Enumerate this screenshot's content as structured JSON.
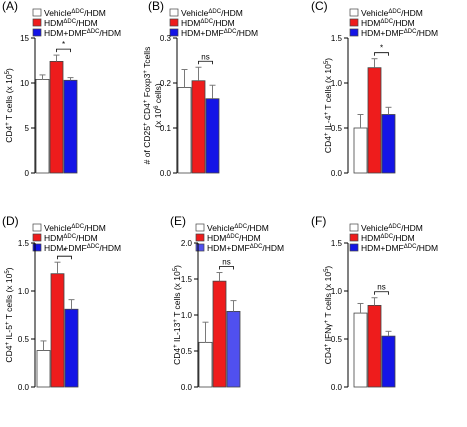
{
  "colors": {
    "vehicle": "#ffffff",
    "hdm": "#ee1c1c",
    "dmf": "#1414e6",
    "dmf_light": "#5050ef",
    "stroke": "#444444",
    "error": "#7a7a7a"
  },
  "chart_data": [
    {
      "panel": "(A)",
      "type": "bar",
      "categories": [
        "VehicleΔDC/HDM",
        "HDMΔDC/HDM",
        "HDM+DMFΔDC/HDM"
      ],
      "ylabel": [
        "CD4",
        "+",
        " T cells (x 10",
        "5",
        ")"
      ],
      "ylim": [
        0,
        15
      ],
      "yticks": [
        0,
        5,
        10,
        15
      ],
      "tick_labels": [
        "0",
        "5",
        "10",
        "15"
      ],
      "values": [
        10.4,
        12.4,
        10.3
      ],
      "errors": [
        0.5,
        0.7,
        0.3
      ],
      "significance": {
        "text": "*",
        "between": [
          1,
          2
        ]
      },
      "legend": [
        "VehicleΔDC/HDM",
        "HDMΔDC/HDM",
        "HDM+DMFΔDC/HDM"
      ]
    },
    {
      "panel": "(B)",
      "type": "bar",
      "categories": [
        "VehicleΔDC/HDM",
        "HDMΔDC/HDM",
        "HDM+DMFΔDC/HDM"
      ],
      "ylabel": [
        "# of CD25",
        "+",
        " CD4",
        "+",
        " Foxp3",
        "+",
        " Tcells",
        "(x 10",
        "6",
        " cells)"
      ],
      "ylim": [
        0,
        0.3
      ],
      "yticks": [
        0,
        0.1,
        0.2,
        0.3
      ],
      "tick_labels": [
        "0.0",
        "0.1",
        "0.2",
        "0.3"
      ],
      "values": [
        0.19,
        0.205,
        0.165
      ],
      "errors": [
        0.04,
        0.03,
        0.03
      ],
      "significance": {
        "text": "ns",
        "between": [
          1,
          2
        ]
      },
      "legend": [
        "VehicleΔDC/HDM",
        "HDMΔDC/HDM",
        "HDM+DMFΔDC/HDM"
      ]
    },
    {
      "panel": "(C)",
      "type": "bar",
      "categories": [
        "VehicleΔDC/HDM",
        "HDMΔDC/HDM",
        "HDM+DMFΔDC/HDM"
      ],
      "ylabel": [
        "CD4",
        "+",
        " IL-4",
        "+",
        " T cells (x 10",
        "5",
        ")"
      ],
      "ylim": [
        0,
        1.5
      ],
      "yticks": [
        0,
        0.5,
        1.0,
        1.5
      ],
      "tick_labels": [
        "0.0",
        "0.5",
        "1.0",
        "1.5"
      ],
      "values": [
        0.5,
        1.17,
        0.65
      ],
      "errors": [
        0.15,
        0.1,
        0.08
      ],
      "significance": {
        "text": "*",
        "between": [
          1,
          2
        ]
      },
      "legend": [
        "VehicleΔDC/HDM",
        "HDMΔDC/HDM",
        "HDM+DMFΔDC/HDM"
      ]
    },
    {
      "panel": "(D)",
      "type": "bar",
      "categories": [
        "VehicleΔDC/HDM",
        "HDMΔDC/HDM",
        "HDM+DMFΔDC/HDM"
      ],
      "ylabel": [
        "CD4",
        "+",
        " IL-5",
        "+",
        " T cells (x 10",
        "5",
        ")"
      ],
      "ylim": [
        0,
        1.5
      ],
      "yticks": [
        0,
        0.5,
        1.0,
        1.5
      ],
      "tick_labels": [
        "0.0",
        "0.5",
        "1.0",
        "1.5"
      ],
      "values": [
        0.38,
        1.18,
        0.81
      ],
      "errors": [
        0.1,
        0.12,
        0.1
      ],
      "significance": {
        "text": "*",
        "between": [
          1,
          2
        ]
      },
      "legend": [
        "VehicleΔDC/HDM",
        "HDMΔDC/HDM",
        "HDM+DMFΔDC/HDM"
      ]
    },
    {
      "panel": "(E)",
      "type": "bar",
      "categories": [
        "VehicleΔDC/HDM",
        "HDMΔDC/HDM",
        "HDM+DMFΔDC/HDM"
      ],
      "ylabel": [
        "CD4",
        "+",
        " IL-13",
        "+",
        " T cells (x 10",
        "5",
        ")"
      ],
      "ylim": [
        0,
        2.0
      ],
      "yticks": [
        0,
        0.5,
        1.0,
        1.5,
        2.0
      ],
      "tick_labels": [
        "0.0",
        "0.5",
        "1.0",
        "1.5",
        "2.0"
      ],
      "values": [
        0.62,
        1.47,
        1.05
      ],
      "errors": [
        0.28,
        0.12,
        0.15
      ],
      "significance": {
        "text": "ns",
        "between": [
          1,
          2
        ]
      },
      "legend": [
        "VehicleΔDC/HDM",
        "HDMΔDC/HDM",
        "HDM+DMFΔDC/HDM"
      ],
      "light_dmf": true
    },
    {
      "panel": "(F)",
      "type": "bar",
      "categories": [
        "VehicleΔDC/HDM",
        "HDMΔDC/HDM",
        "HDM+DMFΔDC/HDM"
      ],
      "ylabel": [
        "CD4",
        "+",
        " IFNγ",
        "+",
        " T cells (x 10",
        "5",
        ")"
      ],
      "ylim": [
        0,
        1.5
      ],
      "yticks": [
        0,
        0.5,
        1.0,
        1.5
      ],
      "tick_labels": [
        "0.0",
        "0.5",
        "1.0",
        "1.5"
      ],
      "values": [
        0.77,
        0.85,
        0.53
      ],
      "errors": [
        0.1,
        0.08,
        0.05
      ],
      "significance": {
        "text": "ns",
        "between": [
          1,
          2
        ]
      },
      "legend": [
        "VehicleΔDC/HDM",
        "HDMΔDC/HDM",
        "HDM+DMFΔDC/HDM"
      ]
    }
  ]
}
